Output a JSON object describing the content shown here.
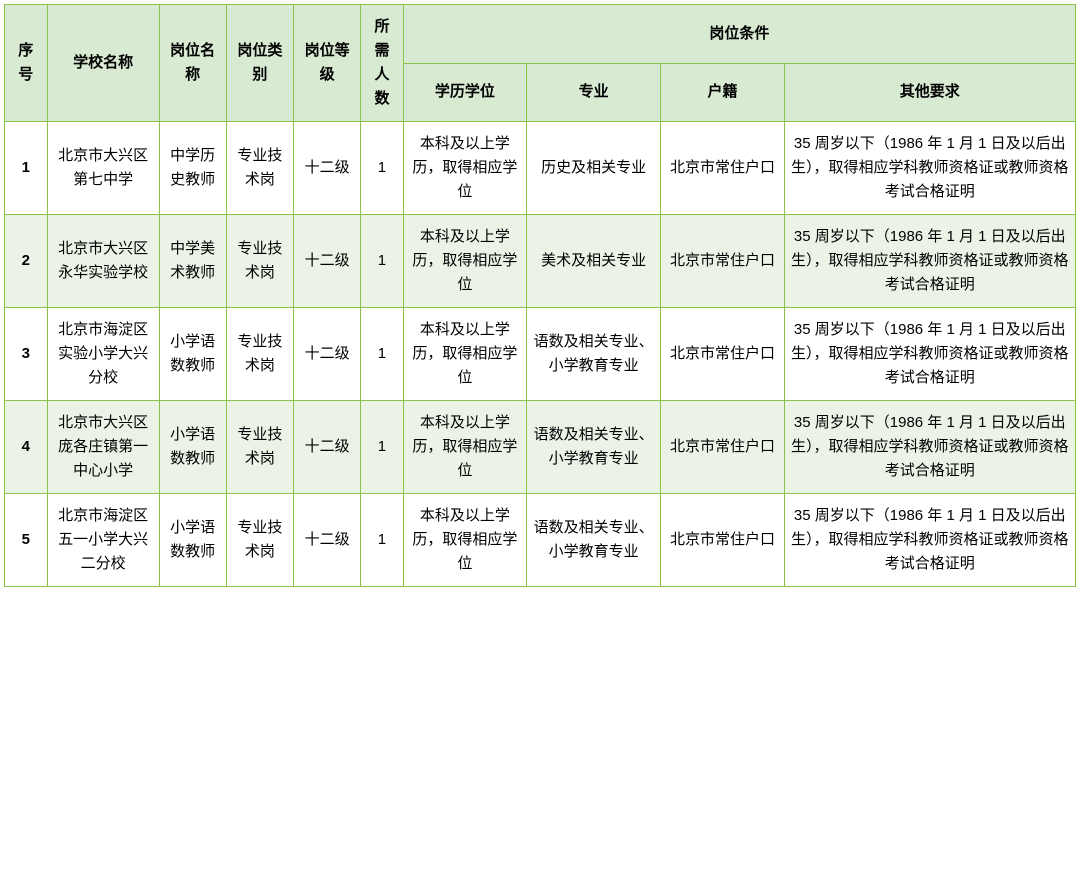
{
  "headers": {
    "seq": "序号",
    "school": "学校名称",
    "postname": "岗位名称",
    "posttype": "岗位类别",
    "postlevel": "岗位等级",
    "count": "所需人数",
    "condgroup": "岗位条件",
    "edu": "学历学位",
    "major": "专业",
    "hukou": "户籍",
    "other": "其他要求"
  },
  "rows": [
    {
      "seq": "1",
      "school": "北京市大兴区第七中学",
      "postname": "中学历史教师",
      "posttype": "专业技术岗",
      "postlevel": "十二级",
      "count": "1",
      "edu": "本科及以上学历，取得相应学位",
      "major": "历史及相关专业",
      "hukou": "北京市常住户口",
      "other": "35 周岁以下（1986 年 1 月 1 日及以后出生），取得相应学科教师资格证或教师资格考试合格证明"
    },
    {
      "seq": "2",
      "school": "北京市大兴区永华实验学校",
      "postname": "中学美术教师",
      "posttype": "专业技术岗",
      "postlevel": "十二级",
      "count": "1",
      "edu": "本科及以上学历，取得相应学位",
      "major": "美术及相关专业",
      "hukou": "北京市常住户口",
      "other": "35 周岁以下（1986 年 1 月 1 日及以后出生），取得相应学科教师资格证或教师资格考试合格证明"
    },
    {
      "seq": "3",
      "school": "北京市海淀区实验小学大兴分校",
      "postname": "小学语数教师",
      "posttype": "专业技术岗",
      "postlevel": "十二级",
      "count": "1",
      "edu": "本科及以上学历，取得相应学位",
      "major": "语数及相关专业、小学教育专业",
      "hukou": "北京市常住户口",
      "other": "35 周岁以下（1986 年 1 月 1 日及以后出生），取得相应学科教师资格证或教师资格考试合格证明"
    },
    {
      "seq": "4",
      "school": "北京市大兴区庞各庄镇第一中心小学",
      "postname": "小学语数教师",
      "posttype": "专业技术岗",
      "postlevel": "十二级",
      "count": "1",
      "edu": "本科及以上学历，取得相应学位",
      "major": "语数及相关专业、小学教育专业",
      "hukou": "北京市常住户口",
      "other": "35 周岁以下（1986 年 1 月 1 日及以后出生），取得相应学科教师资格证或教师资格考试合格证明"
    },
    {
      "seq": "5",
      "school": "北京市海淀区五一小学大兴二分校",
      "postname": "小学语数教师",
      "posttype": "专业技术岗",
      "postlevel": "十二级",
      "count": "1",
      "edu": "本科及以上学历，取得相应学位",
      "major": "语数及相关专业、小学教育专业",
      "hukou": "北京市常住户口",
      "other": "35 周岁以下（1986 年 1 月 1 日及以后出生），取得相应学科教师资格证或教师资格考试合格证明"
    }
  ],
  "style": {
    "border_color": "#8bc34a",
    "header_bg": "#d8ead2",
    "row_even_bg": "#ebf3e7",
    "row_odd_bg": "#ffffff",
    "font_size": 15
  }
}
